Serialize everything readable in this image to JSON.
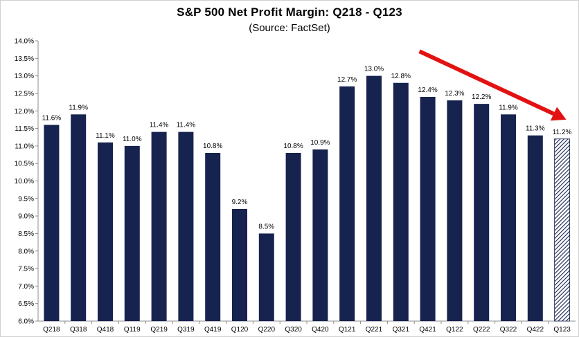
{
  "chart_data": {
    "type": "bar",
    "title": "S&P 500 Net Profit Margin: Q218 - Q123",
    "subtitle": "(Source: FactSet)",
    "categories": [
      "Q218",
      "Q318",
      "Q418",
      "Q119",
      "Q219",
      "Q319",
      "Q419",
      "Q120",
      "Q220",
      "Q320",
      "Q420",
      "Q121",
      "Q221",
      "Q321",
      "Q421",
      "Q122",
      "Q222",
      "Q322",
      "Q422",
      "Q123"
    ],
    "values": [
      11.6,
      11.9,
      11.1,
      11.0,
      11.4,
      11.4,
      10.8,
      9.2,
      8.5,
      10.8,
      10.9,
      12.7,
      13.0,
      12.8,
      12.4,
      12.3,
      12.2,
      11.9,
      11.3,
      11.2
    ],
    "data_labels": [
      "11.6%",
      "11.9%",
      "11.1%",
      "11.0%",
      "11.4%",
      "11.4%",
      "10.8%",
      "9.2%",
      "8.5%",
      "10.8%",
      "10.9%",
      "12.7%",
      "13.0%",
      "12.8%",
      "12.4%",
      "12.3%",
      "12.2%",
      "11.9%",
      "11.3%",
      "11.2%"
    ],
    "ylim": [
      6.0,
      14.0
    ],
    "yticks": [
      "6.0%",
      "6.5%",
      "7.0%",
      "7.5%",
      "8.0%",
      "8.5%",
      "9.0%",
      "9.5%",
      "10.0%",
      "10.5%",
      "11.0%",
      "11.5%",
      "12.0%",
      "12.5%",
      "13.0%",
      "13.5%",
      "14.0%"
    ],
    "xlabel": "",
    "ylabel": "",
    "grid": false,
    "estimate_categories": [
      "Q123"
    ],
    "annotation": "downward trend arrow from Q421 to Q123",
    "colors": {
      "bar": "#17234f",
      "estimate_hatch": "#17234f",
      "arrow": "#e31212",
      "axis": "#8c8c8c"
    }
  }
}
